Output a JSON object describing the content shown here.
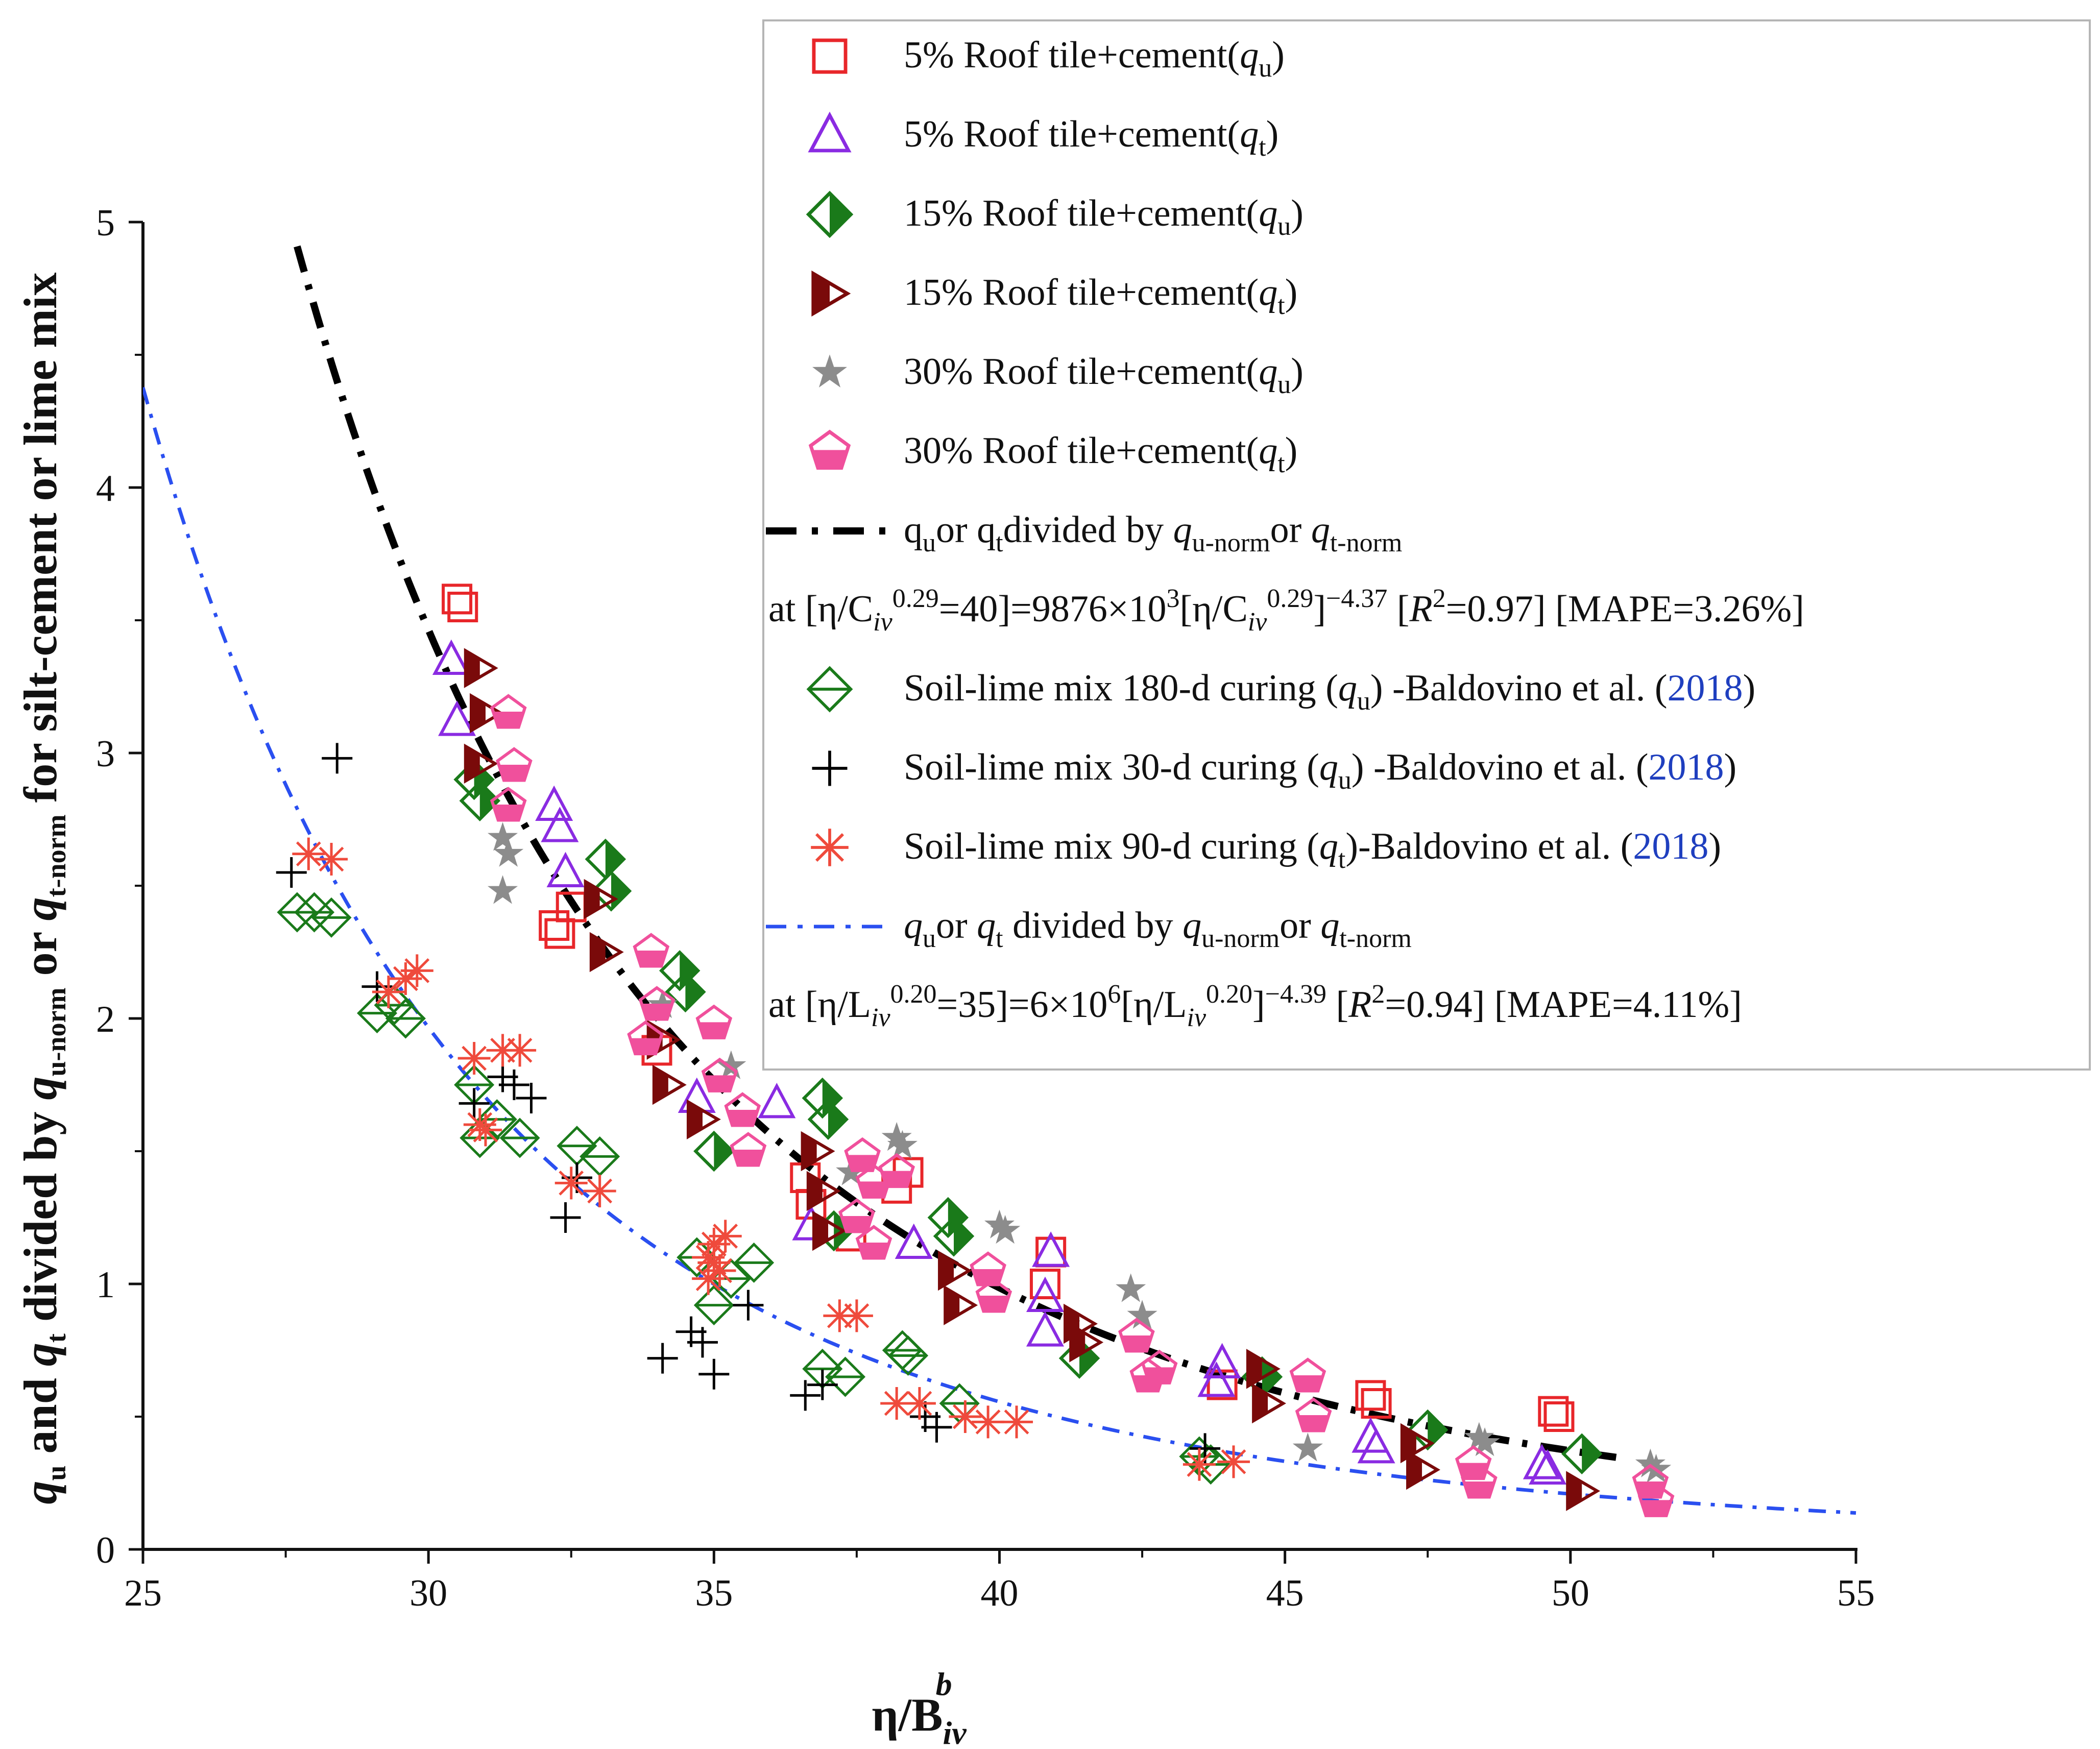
{
  "chart_data": {
    "type": "scatter",
    "title": "",
    "xlabel": "η/B_iv^b",
    "xlabel_main": "η/B",
    "xlabel_sub": "iv",
    "xlabel_sup": "b",
    "ylabel": "q_u and q_t divided by q_u-norm or q_t-norm for silt-cement or lime mix",
    "ylabel_parts": [
      "q",
      "u",
      " and ",
      "q",
      "t",
      " divided by ",
      "q",
      "u-norm",
      " or ",
      "q",
      "t-norm",
      " for silt-cement or lime mix"
    ],
    "xlim": [
      25,
      55
    ],
    "ylim": [
      0,
      5
    ],
    "xticks": [
      "25",
      "30",
      "35",
      "40",
      "45",
      "50",
      "55"
    ],
    "yticks": [
      "0",
      "1",
      "2",
      "3",
      "4",
      "5"
    ],
    "legend_position": "top-right",
    "colors": {
      "red": "#e8262a",
      "purple": "#8a2be2",
      "green": "#1a7a1a",
      "darkred": "#7a0a0a",
      "gray": "#8c8c8c",
      "pink": "#f0509c",
      "black": "#000000",
      "salmon": "#ef4a3c",
      "blue": "#2a4ff0",
      "year": "#1f3fbf"
    },
    "series": [
      {
        "name": "5% Roof tile+cement(q_u)",
        "legend_parts": [
          "5% Roof tile+cement(",
          "q",
          "u",
          ")"
        ],
        "marker": "square-open",
        "color": "#e8262a",
        "points": [
          [
            30.5,
            3.58
          ],
          [
            30.6,
            3.55
          ],
          [
            32.2,
            2.35
          ],
          [
            32.3,
            2.32
          ],
          [
            32.5,
            2.42
          ],
          [
            34.0,
            1.88
          ],
          [
            36.6,
            1.4
          ],
          [
            36.7,
            1.3
          ],
          [
            37.4,
            1.18
          ],
          [
            38.2,
            1.36
          ],
          [
            38.4,
            1.42
          ],
          [
            40.8,
            1.0
          ],
          [
            40.9,
            1.12
          ],
          [
            43.9,
            0.62
          ],
          [
            46.5,
            0.58
          ],
          [
            46.6,
            0.55
          ],
          [
            49.7,
            0.52
          ],
          [
            49.8,
            0.5
          ]
        ]
      },
      {
        "name": "5% Roof tile+cement(q_t)",
        "legend_parts": [
          "5% Roof tile+cement(",
          "q",
          "t",
          ")"
        ],
        "marker": "triangle-open",
        "color": "#8a2be2",
        "points": [
          [
            30.4,
            3.35
          ],
          [
            30.5,
            3.12
          ],
          [
            32.2,
            2.8
          ],
          [
            32.3,
            2.72
          ],
          [
            32.4,
            2.55
          ],
          [
            34.7,
            1.7
          ],
          [
            36.1,
            1.68
          ],
          [
            36.7,
            1.22
          ],
          [
            38.5,
            1.15
          ],
          [
            40.9,
            1.12
          ],
          [
            40.8,
            0.95
          ],
          [
            40.8,
            0.82
          ],
          [
            43.8,
            0.63
          ],
          [
            43.9,
            0.7
          ],
          [
            46.5,
            0.42
          ],
          [
            46.6,
            0.38
          ],
          [
            49.5,
            0.32
          ],
          [
            49.6,
            0.3
          ]
        ]
      },
      {
        "name": "15% Roof tile+cement(q_u)",
        "legend_parts": [
          "15% Roof tile+cement(",
          "q",
          "u",
          ")"
        ],
        "marker": "diamond-half",
        "color": "#1a7a1a",
        "points": [
          [
            30.8,
            2.9
          ],
          [
            30.9,
            2.82
          ],
          [
            33.1,
            2.6
          ],
          [
            33.2,
            2.48
          ],
          [
            34.4,
            2.18
          ],
          [
            34.5,
            2.1
          ],
          [
            35.0,
            1.5
          ],
          [
            36.9,
            1.7
          ],
          [
            37.0,
            1.62
          ],
          [
            37.1,
            1.2
          ],
          [
            39.1,
            1.25
          ],
          [
            39.2,
            1.18
          ],
          [
            41.4,
            0.72
          ],
          [
            44.6,
            0.65
          ],
          [
            47.5,
            0.45
          ],
          [
            50.2,
            0.36
          ]
        ]
      },
      {
        "name": "15% Roof tile+cement(q_t)",
        "legend_parts": [
          "15% Roof tile+cement(",
          "q",
          "t",
          ")"
        ],
        "marker": "triangle-right-half",
        "color": "#7a0a0a",
        "points": [
          [
            30.9,
            3.32
          ],
          [
            31.0,
            3.15
          ],
          [
            30.9,
            2.96
          ],
          [
            33.0,
            2.45
          ],
          [
            33.1,
            2.25
          ],
          [
            34.1,
            1.92
          ],
          [
            34.2,
            1.75
          ],
          [
            34.8,
            1.62
          ],
          [
            36.8,
            1.5
          ],
          [
            36.9,
            1.35
          ],
          [
            37.0,
            1.2
          ],
          [
            39.2,
            1.05
          ],
          [
            39.3,
            0.92
          ],
          [
            41.4,
            0.85
          ],
          [
            41.5,
            0.78
          ],
          [
            44.6,
            0.68
          ],
          [
            44.7,
            0.55
          ],
          [
            47.3,
            0.4
          ],
          [
            47.4,
            0.3
          ],
          [
            50.2,
            0.22
          ]
        ]
      },
      {
        "name": "30% Roof tile+cement(q_u)",
        "legend_parts": [
          "30% Roof tile+cement(",
          "q",
          "u",
          ")"
        ],
        "marker": "star-gray",
        "color": "#8c8c8c",
        "points": [
          [
            31.3,
            2.68
          ],
          [
            31.4,
            2.62
          ],
          [
            31.3,
            2.48
          ],
          [
            34.1,
            2.05
          ],
          [
            35.3,
            1.82
          ],
          [
            37.4,
            1.42
          ],
          [
            38.2,
            1.55
          ],
          [
            38.3,
            1.52
          ],
          [
            40.0,
            1.22
          ],
          [
            40.1,
            1.2
          ],
          [
            42.3,
            0.98
          ],
          [
            42.5,
            0.88
          ],
          [
            45.4,
            0.38
          ],
          [
            48.4,
            0.42
          ],
          [
            48.5,
            0.4
          ],
          [
            51.4,
            0.32
          ],
          [
            51.5,
            0.3
          ]
        ]
      },
      {
        "name": "30% Roof tile+cement(q_t)",
        "legend_parts": [
          "30% Roof tile+cement(",
          "q",
          "t",
          ")"
        ],
        "marker": "pentagon-half",
        "color": "#f0509c",
        "points": [
          [
            31.4,
            3.15
          ],
          [
            31.5,
            2.95
          ],
          [
            31.4,
            2.8
          ],
          [
            33.9,
            2.25
          ],
          [
            34.0,
            2.05
          ],
          [
            33.8,
            1.92
          ],
          [
            35.0,
            1.98
          ],
          [
            35.1,
            1.78
          ],
          [
            35.5,
            1.65
          ],
          [
            35.6,
            1.5
          ],
          [
            37.6,
            1.48
          ],
          [
            37.8,
            1.38
          ],
          [
            38.2,
            1.42
          ],
          [
            37.5,
            1.25
          ],
          [
            37.8,
            1.15
          ],
          [
            39.8,
            1.05
          ],
          [
            39.9,
            0.95
          ],
          [
            42.4,
            0.8
          ],
          [
            42.6,
            0.65
          ],
          [
            42.8,
            0.68
          ],
          [
            45.4,
            0.65
          ],
          [
            45.5,
            0.5
          ],
          [
            48.3,
            0.32
          ],
          [
            48.4,
            0.25
          ],
          [
            51.4,
            0.25
          ],
          [
            51.5,
            0.18
          ]
        ]
      },
      {
        "name": "Soil-lime mix 180-d curing (q_u) -Baldovino et al. (2018)",
        "legend_parts": [
          "Soil-lime mix 180-d curing (",
          "q",
          "u",
          ") -Baldovino et al. (",
          "2018",
          ")"
        ],
        "marker": "diamond-bar",
        "color": "#1a7a1a",
        "points": [
          [
            27.7,
            2.4
          ],
          [
            28.0,
            2.4
          ],
          [
            28.3,
            2.38
          ],
          [
            29.1,
            2.02
          ],
          [
            29.4,
            2.05
          ],
          [
            29.6,
            2.0
          ],
          [
            30.8,
            1.75
          ],
          [
            30.9,
            1.55
          ],
          [
            31.2,
            1.62
          ],
          [
            31.6,
            1.55
          ],
          [
            32.6,
            1.52
          ],
          [
            33.0,
            1.48
          ],
          [
            34.7,
            1.1
          ],
          [
            35.0,
            0.92
          ],
          [
            35.3,
            1.02
          ],
          [
            35.7,
            1.08
          ],
          [
            36.9,
            0.68
          ],
          [
            37.3,
            0.65
          ],
          [
            38.3,
            0.75
          ],
          [
            38.4,
            0.73
          ],
          [
            39.3,
            0.55
          ],
          [
            43.5,
            0.35
          ],
          [
            43.7,
            0.32
          ]
        ]
      },
      {
        "name": "Soil-lime mix 30-d curing (q_u) -Baldovino et al. (2018)",
        "legend_parts": [
          "Soil-lime mix 30-d curing (",
          "q",
          "u",
          ") -Baldovino et al. (",
          "2018",
          ")"
        ],
        "marker": "plus",
        "color": "#000000",
        "points": [
          [
            27.6,
            2.55
          ],
          [
            28.4,
            2.98
          ],
          [
            29.1,
            2.12
          ],
          [
            30.8,
            1.68
          ],
          [
            31.3,
            1.78
          ],
          [
            31.5,
            1.75
          ],
          [
            31.8,
            1.7
          ],
          [
            32.4,
            1.25
          ],
          [
            32.6,
            1.4
          ],
          [
            34.1,
            0.72
          ],
          [
            34.6,
            0.82
          ],
          [
            34.8,
            0.78
          ],
          [
            35.0,
            0.66
          ],
          [
            35.6,
            0.92
          ],
          [
            36.6,
            0.58
          ],
          [
            36.9,
            0.62
          ],
          [
            38.7,
            0.5
          ],
          [
            38.9,
            0.46
          ],
          [
            43.6,
            0.38
          ]
        ]
      },
      {
        "name": "Soil-lime mix 90-d curing (q_t)-Baldovino et al. (2018)",
        "legend_parts": [
          "Soil-lime mix 90-d curing (",
          "q",
          "t",
          ")-Baldovino et al. (",
          "2018",
          ")"
        ],
        "marker": "asterisk",
        "color": "#ef4a3c",
        "points": [
          [
            27.9,
            2.62
          ],
          [
            28.3,
            2.6
          ],
          [
            29.3,
            2.1
          ],
          [
            29.6,
            2.15
          ],
          [
            29.8,
            2.18
          ],
          [
            30.8,
            1.85
          ],
          [
            30.9,
            1.6
          ],
          [
            31.0,
            1.58
          ],
          [
            31.3,
            1.88
          ],
          [
            31.6,
            1.88
          ],
          [
            32.5,
            1.38
          ],
          [
            33.0,
            1.35
          ],
          [
            34.9,
            1.1
          ],
          [
            35.0,
            1.15
          ],
          [
            35.1,
            1.05
          ],
          [
            35.2,
            1.18
          ],
          [
            35.0,
            1.08
          ],
          [
            34.9,
            1.02
          ],
          [
            37.2,
            0.88
          ],
          [
            37.5,
            0.88
          ],
          [
            38.2,
            0.55
          ],
          [
            38.6,
            0.55
          ],
          [
            39.4,
            0.5
          ],
          [
            39.8,
            0.48
          ],
          [
            40.3,
            0.48
          ],
          [
            43.5,
            0.32
          ],
          [
            44.1,
            0.33
          ]
        ]
      }
    ],
    "curves": [
      {
        "name": "q_u or q_t divided by q_u-norm or q_t-norm",
        "legend_parts": [
          "q",
          "u",
          "or q",
          "t",
          "divided by ",
          "q",
          "u-norm",
          "or ",
          "q",
          "t-norm"
        ],
        "equation_parts": [
          "at [η/C",
          "iv",
          "0.29",
          "=40]=9876×10",
          "3",
          "[η/C",
          "iv",
          "0.29",
          "]",
          "−4.37",
          " [",
          "R",
          "2",
          "=0.97] [MAPE=3.26%]"
        ],
        "style": "dash-dot-black",
        "color": "#000000",
        "coefficient": 9876000,
        "exponent": -4.37,
        "x_range": [
          27.7,
          50.8
        ]
      },
      {
        "name": "q_u or q_t divided by q_u-norm or q_t-norm",
        "legend_parts": [
          "q",
          "u",
          "or ",
          "q",
          "t",
          " divided by ",
          "q",
          "u-norm",
          "or ",
          "q",
          "t-norm"
        ],
        "equation_parts": [
          "at [η/L",
          "iv",
          "0.20",
          "=35]=6×10",
          "6",
          "[η/L",
          "iv",
          "0.20",
          "]",
          "−4.39",
          " [",
          "R",
          "2",
          "=0.94] [MAPE=4.11%]"
        ],
        "style": "dash-dot-blue",
        "color": "#2a4ff0",
        "coefficient": 6000000,
        "exponent": -4.39,
        "x_range": [
          25,
          55
        ]
      }
    ]
  }
}
